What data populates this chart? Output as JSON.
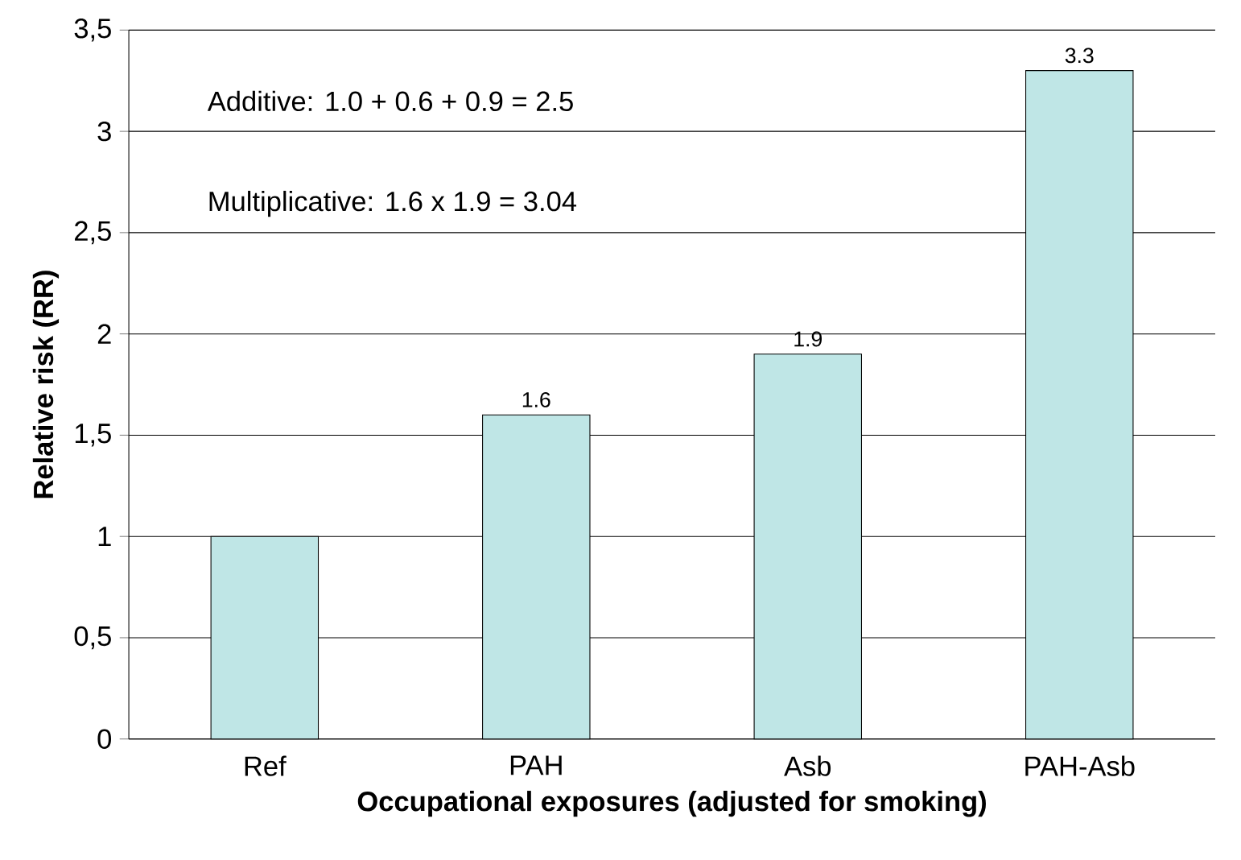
{
  "chart_data": {
    "type": "bar",
    "xlabel": "Occupational exposures (adjusted for smoking)",
    "ylabel": "Relative risk (RR)",
    "categories": [
      "Ref",
      "PAH",
      "Asb",
      "PAH-Asb"
    ],
    "values": [
      1.0,
      1.6,
      1.9,
      3.3
    ],
    "value_labels": [
      null,
      "1.6",
      "1.9",
      "3.3"
    ],
    "color": "#bfe6e6",
    "ylim": [
      0,
      3.5
    ],
    "yticks": [
      0,
      {
        "value": 0.5,
        "label": "0,5"
      },
      1,
      {
        "value": 1.5,
        "label": "1,5"
      },
      2,
      {
        "value": 2.5,
        "label": "2,5"
      },
      3,
      {
        "value": 3.5,
        "label": "3,5"
      }
    ],
    "grid": "y",
    "annotations": [
      "Additive: 1.0 + 0.6 + 0.9 = 2.5",
      "Multiplicative: 1.6 x 1.9 = 3.04"
    ]
  }
}
